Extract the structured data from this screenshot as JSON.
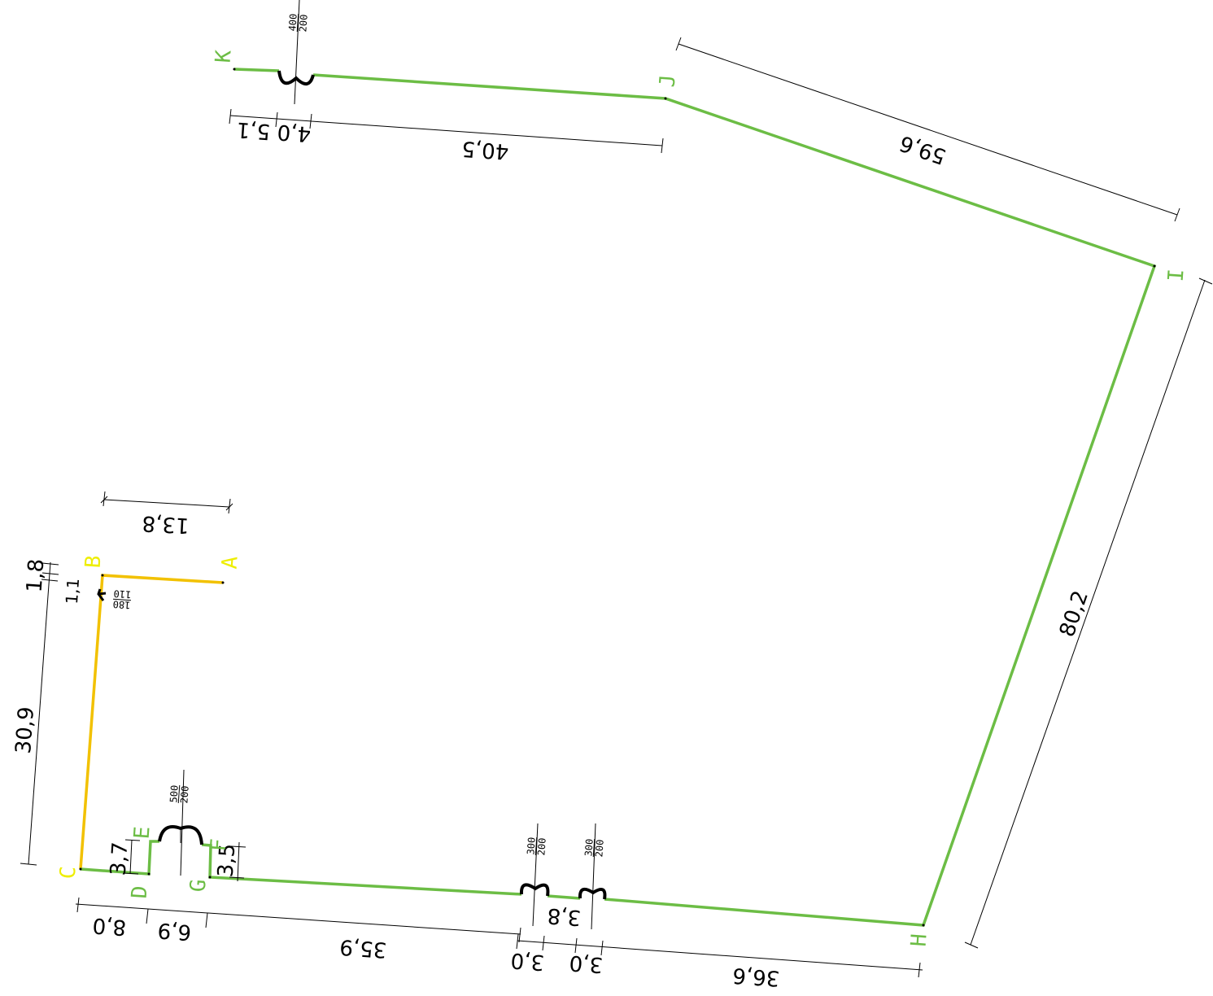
{
  "colors": {
    "green": "#6cbd45",
    "yellow": "#f2c100",
    "label_green": "#6cbd45",
    "label_yellow": "#eeee00",
    "dimension": "#000000"
  },
  "point_labels": {
    "A": "A",
    "B": "B",
    "C": "C",
    "D": "D",
    "E": "E",
    "F": "F",
    "G": "G",
    "H": "H",
    "I": "I",
    "J": "J",
    "K": "K"
  },
  "dimensions": {
    "ab": "13,8",
    "bc_top1": "1,8",
    "bc_top2": "1,1",
    "bc": "30,9",
    "cd": "8,0",
    "de_height": "3,7",
    "dg": "6,9",
    "fg_height": "3,5",
    "g_to_gap1": "35,9",
    "gap1": "3,0",
    "between_gaps": "3,8",
    "gap2": "3,0",
    "gap2_to_h": "36,6",
    "hi": "80,2",
    "ij": "59,6",
    "jk": "40,5",
    "k_gap_a": "4,0",
    "k_gap_b": "5,1"
  },
  "openings": {
    "b_corner": {
      "top": "180",
      "bottom": "110"
    },
    "ef": {
      "top": "500",
      "bottom": "200"
    },
    "gh_1": {
      "top": "300",
      "bottom": "200"
    },
    "gh_2": {
      "top": "300",
      "bottom": "200"
    },
    "jk": {
      "top": "400",
      "bottom": "200"
    }
  }
}
